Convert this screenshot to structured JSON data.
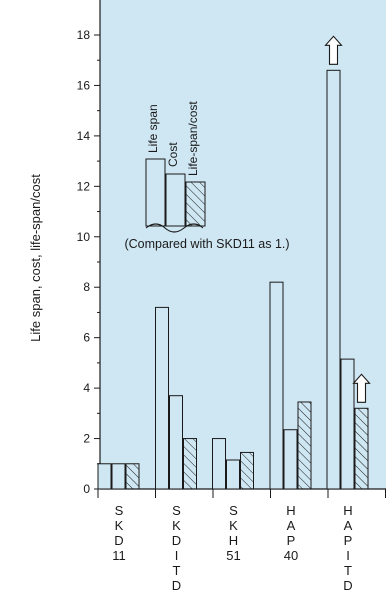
{
  "chart_data": {
    "type": "bar",
    "ylabel": "Life span, cost, life-span/cost",
    "ylim": [
      0,
      19
    ],
    "yticks": [
      "0",
      "2",
      "4",
      "6",
      "8",
      "10",
      "12",
      "14",
      "16",
      "18"
    ],
    "categories": [
      "SKD11",
      "SKD I TD",
      "SKH51",
      "HAP40",
      "HAP I TD"
    ],
    "category_labels": [
      [
        "S",
        "K",
        "D",
        "11"
      ],
      [
        "S",
        "K",
        "D",
        "I",
        "T",
        "D"
      ],
      [
        "S",
        "K",
        "H",
        "51"
      ],
      [
        "H",
        "A",
        "P",
        "40"
      ],
      [
        "H",
        "A",
        "P",
        "I",
        "T",
        "D"
      ]
    ],
    "series": [
      {
        "name": "Life span",
        "values": [
          1,
          7.2,
          2.0,
          8.2,
          16.6
        ],
        "fill": "none"
      },
      {
        "name": "Cost",
        "values": [
          1,
          3.7,
          1.15,
          2.35,
          5.15
        ],
        "fill": "none"
      },
      {
        "name": "Life-span/cost",
        "values": [
          1,
          2.0,
          1.45,
          3.45,
          3.2
        ],
        "fill": "hatched"
      }
    ],
    "exceeds_scale_arrows": [
      {
        "category": "HAP I TD",
        "series": "Life span"
      },
      {
        "category": "HAP I TD",
        "series": "Life-span/cost"
      }
    ],
    "legend": {
      "items": [
        "Life span",
        "Cost",
        "Life-span/cost"
      ],
      "note": "(Compared with SKD11 as 1.)",
      "placement": "upper-left"
    },
    "grid": false
  },
  "colors": {
    "background": "#cfe7f3",
    "stroke": "#1a1a1a",
    "bar_fill": "#cfe7f3"
  }
}
